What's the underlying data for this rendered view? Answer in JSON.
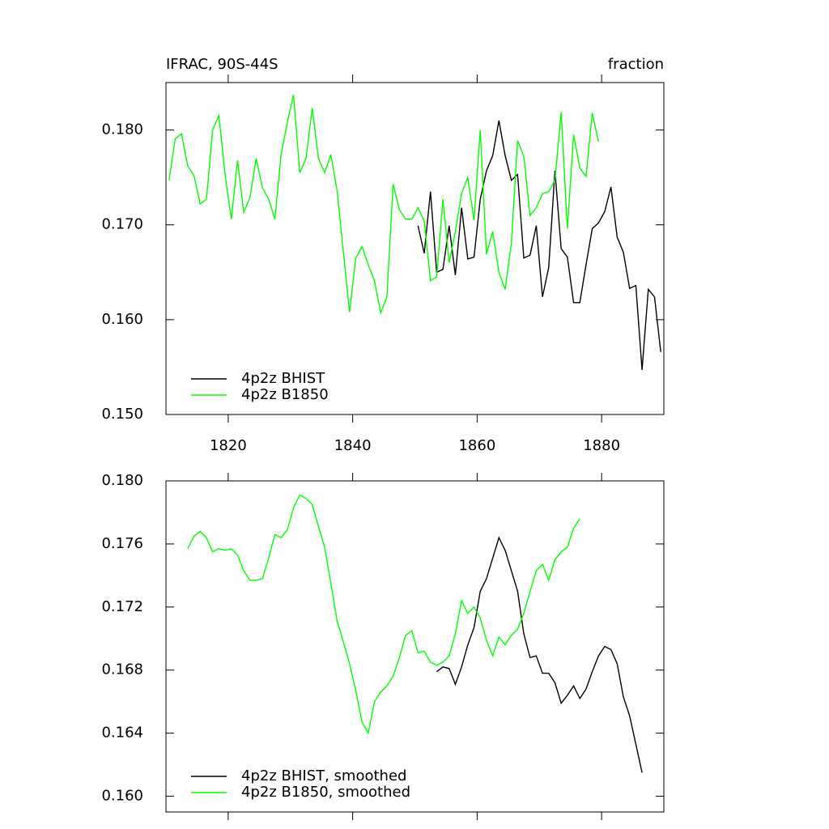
{
  "chart_data": [
    {
      "type": "line",
      "title": "IFRAC, 90S-44S",
      "units_label": "fraction",
      "legend": "lower left",
      "xlim": [
        1810,
        1890
      ],
      "xticks": [
        1820,
        1840,
        1860,
        1880
      ],
      "xtick_labels": true,
      "ylim": [
        0.15,
        0.185
      ],
      "yticks": [
        {
          "value": 0.15,
          "label": "0.150"
        },
        {
          "value": 0.16,
          "label": "0.160"
        },
        {
          "value": 0.17,
          "label": "0.170"
        },
        {
          "value": 0.18,
          "label": "0.180"
        }
      ],
      "series": [
        {
          "name": "4p2z BHIST",
          "color": "#000000",
          "x": [
            1850.5,
            1851.5,
            1852.5,
            1853.5,
            1854.5,
            1855.5,
            1856.5,
            1857.5,
            1858.5,
            1859.5,
            1860.5,
            1861.5,
            1862.5,
            1863.5,
            1864.5,
            1865.5,
            1866.5,
            1867.5,
            1868.5,
            1869.5,
            1870.5,
            1871.5,
            1872.5,
            1873.5,
            1874.5,
            1875.5,
            1876.5,
            1877.5,
            1878.5,
            1879.5,
            1880.5,
            1881.5,
            1882.5,
            1883.5,
            1884.5,
            1885.5,
            1886.5,
            1887.5,
            1888.5,
            1889.5
          ],
          "values": [
            0.1699,
            0.167,
            0.1735,
            0.165,
            0.1653,
            0.1699,
            0.1647,
            0.1718,
            0.1664,
            0.1666,
            0.1727,
            0.1757,
            0.1773,
            0.181,
            0.1773,
            0.1747,
            0.1753,
            0.1665,
            0.1668,
            0.1699,
            0.1624,
            0.1655,
            0.1757,
            0.1675,
            0.1666,
            0.1618,
            0.1618,
            0.1658,
            0.1696,
            0.1702,
            0.1714,
            0.174,
            0.1687,
            0.1671,
            0.1633,
            0.1636,
            0.1547,
            0.1632,
            0.1624,
            0.1566
          ]
        },
        {
          "name": "4p2z B1850",
          "color": "#00ff00",
          "x": [
            1810.5,
            1811.5,
            1812.5,
            1813.5,
            1814.5,
            1815.5,
            1816.5,
            1817.5,
            1818.5,
            1819.5,
            1820.5,
            1821.5,
            1822.5,
            1823.5,
            1824.5,
            1825.5,
            1826.5,
            1827.5,
            1828.5,
            1829.5,
            1830.5,
            1831.5,
            1832.5,
            1833.5,
            1834.5,
            1835.5,
            1836.5,
            1837.5,
            1838.5,
            1839.5,
            1840.5,
            1841.5,
            1842.5,
            1843.5,
            1844.5,
            1845.5,
            1846.5,
            1847.5,
            1848.5,
            1849.5,
            1850.5,
            1851.5,
            1852.5,
            1853.5,
            1854.5,
            1855.5,
            1856.5,
            1857.5,
            1858.5,
            1859.5,
            1860.5,
            1861.5,
            1862.5,
            1863.5,
            1864.5,
            1865.5,
            1866.5,
            1867.5,
            1868.5,
            1869.5,
            1870.5,
            1871.5,
            1872.5,
            1873.5,
            1874.5,
            1875.5,
            1876.5,
            1877.5,
            1878.5,
            1879.5
          ],
          "values": [
            0.1747,
            0.1791,
            0.1796,
            0.1762,
            0.1752,
            0.1722,
            0.1727,
            0.18,
            0.1815,
            0.1753,
            0.1706,
            0.1768,
            0.1713,
            0.1729,
            0.177,
            0.1739,
            0.1727,
            0.1706,
            0.1774,
            0.1808,
            0.1837,
            0.1755,
            0.177,
            0.1823,
            0.177,
            0.1755,
            0.1774,
            0.1736,
            0.1672,
            0.1608,
            0.1665,
            0.1677,
            0.1658,
            0.1641,
            0.1607,
            0.1624,
            0.1743,
            0.1716,
            0.1706,
            0.1706,
            0.1718,
            0.1704,
            0.1641,
            0.1645,
            0.1727,
            0.166,
            0.1693,
            0.1733,
            0.175,
            0.1705,
            0.18,
            0.1669,
            0.1693,
            0.165,
            0.1632,
            0.1681,
            0.1789,
            0.1772,
            0.171,
            0.1718,
            0.1733,
            0.1735,
            0.1747,
            0.1819,
            0.1696,
            0.1795,
            0.176,
            0.1751,
            0.1818,
            0.1788
          ]
        }
      ]
    },
    {
      "type": "line",
      "legend": "lower left",
      "xlim": [
        1810,
        1890
      ],
      "xticks": [
        1820,
        1840,
        1860,
        1880
      ],
      "xtick_labels": false,
      "ylim": [
        0.159,
        0.18
      ],
      "yticks": [
        {
          "value": 0.16,
          "label": "0.160"
        },
        0.164,
        0.168,
        0.172,
        0.176,
        {
          "value": 0.18,
          "label": "0.180"
        }
      ],
      "series": [
        {
          "name": "4p2z BHIST, smoothed",
          "color": "#000000",
          "x": [
            1853.5,
            1854.5,
            1855.5,
            1856.5,
            1857.5,
            1858.5,
            1859.5,
            1860.5,
            1861.5,
            1862.5,
            1863.5,
            1864.5,
            1865.5,
            1866.5,
            1867.5,
            1868.5,
            1869.5,
            1870.5,
            1871.5,
            1872.5,
            1873.5,
            1874.5,
            1875.5,
            1876.5,
            1877.5,
            1878.5,
            1879.5,
            1880.5,
            1881.5,
            1882.5,
            1883.5,
            1884.5,
            1885.5,
            1886.5
          ],
          "values": [
            0.1679,
            0.1682,
            0.1681,
            0.1671,
            0.1682,
            0.1696,
            0.1707,
            0.173,
            0.1738,
            0.1751,
            0.1764,
            0.1756,
            0.1743,
            0.173,
            0.1703,
            0.1688,
            0.1689,
            0.1678,
            0.1678,
            0.1672,
            0.1659,
            0.1664,
            0.167,
            0.1662,
            0.1668,
            0.1679,
            0.1689,
            0.1695,
            0.1693,
            0.1684,
            0.1663,
            0.1651,
            0.1633,
            0.1615
          ]
        },
        {
          "name": "4p2z B1850, smoothed",
          "color": "#00ff00",
          "x": [
            1813.5,
            1814.5,
            1815.5,
            1816.5,
            1817.5,
            1818.5,
            1819.5,
            1820.5,
            1821.5,
            1822.5,
            1823.5,
            1824.5,
            1825.5,
            1826.5,
            1827.5,
            1828.5,
            1829.5,
            1830.5,
            1831.5,
            1832.5,
            1833.5,
            1834.5,
            1835.5,
            1836.5,
            1837.5,
            1838.5,
            1839.5,
            1840.5,
            1841.5,
            1842.5,
            1843.5,
            1844.5,
            1845.5,
            1846.5,
            1847.5,
            1848.5,
            1849.5,
            1850.5,
            1851.5,
            1852.5,
            1853.5,
            1854.5,
            1855.5,
            1856.5,
            1857.5,
            1858.5,
            1859.5,
            1860.5,
            1861.5,
            1862.5,
            1863.5,
            1864.5,
            1865.5,
            1866.5,
            1867.5,
            1868.5,
            1869.5,
            1870.5,
            1871.5,
            1872.5,
            1873.5,
            1874.5,
            1875.5,
            1876.5
          ],
          "values": [
            0.1757,
            0.1765,
            0.1768,
            0.1764,
            0.1755,
            0.1757,
            0.1756,
            0.1757,
            0.1753,
            0.1743,
            0.1737,
            0.1737,
            0.1738,
            0.1751,
            0.1766,
            0.1764,
            0.1769,
            0.1783,
            0.1791,
            0.1789,
            0.1785,
            0.1771,
            0.1758,
            0.1735,
            0.1711,
            0.1698,
            0.1684,
            0.1667,
            0.1647,
            0.164,
            0.166,
            0.1666,
            0.167,
            0.1676,
            0.1688,
            0.1702,
            0.1705,
            0.1691,
            0.1692,
            0.1685,
            0.1683,
            0.1685,
            0.1689,
            0.1703,
            0.1724,
            0.1716,
            0.172,
            0.1713,
            0.1699,
            0.1689,
            0.1701,
            0.1696,
            0.1702,
            0.1706,
            0.1716,
            0.173,
            0.1743,
            0.1747,
            0.1737,
            0.175,
            0.1755,
            0.1758,
            0.177,
            0.1776
          ]
        }
      ]
    }
  ]
}
